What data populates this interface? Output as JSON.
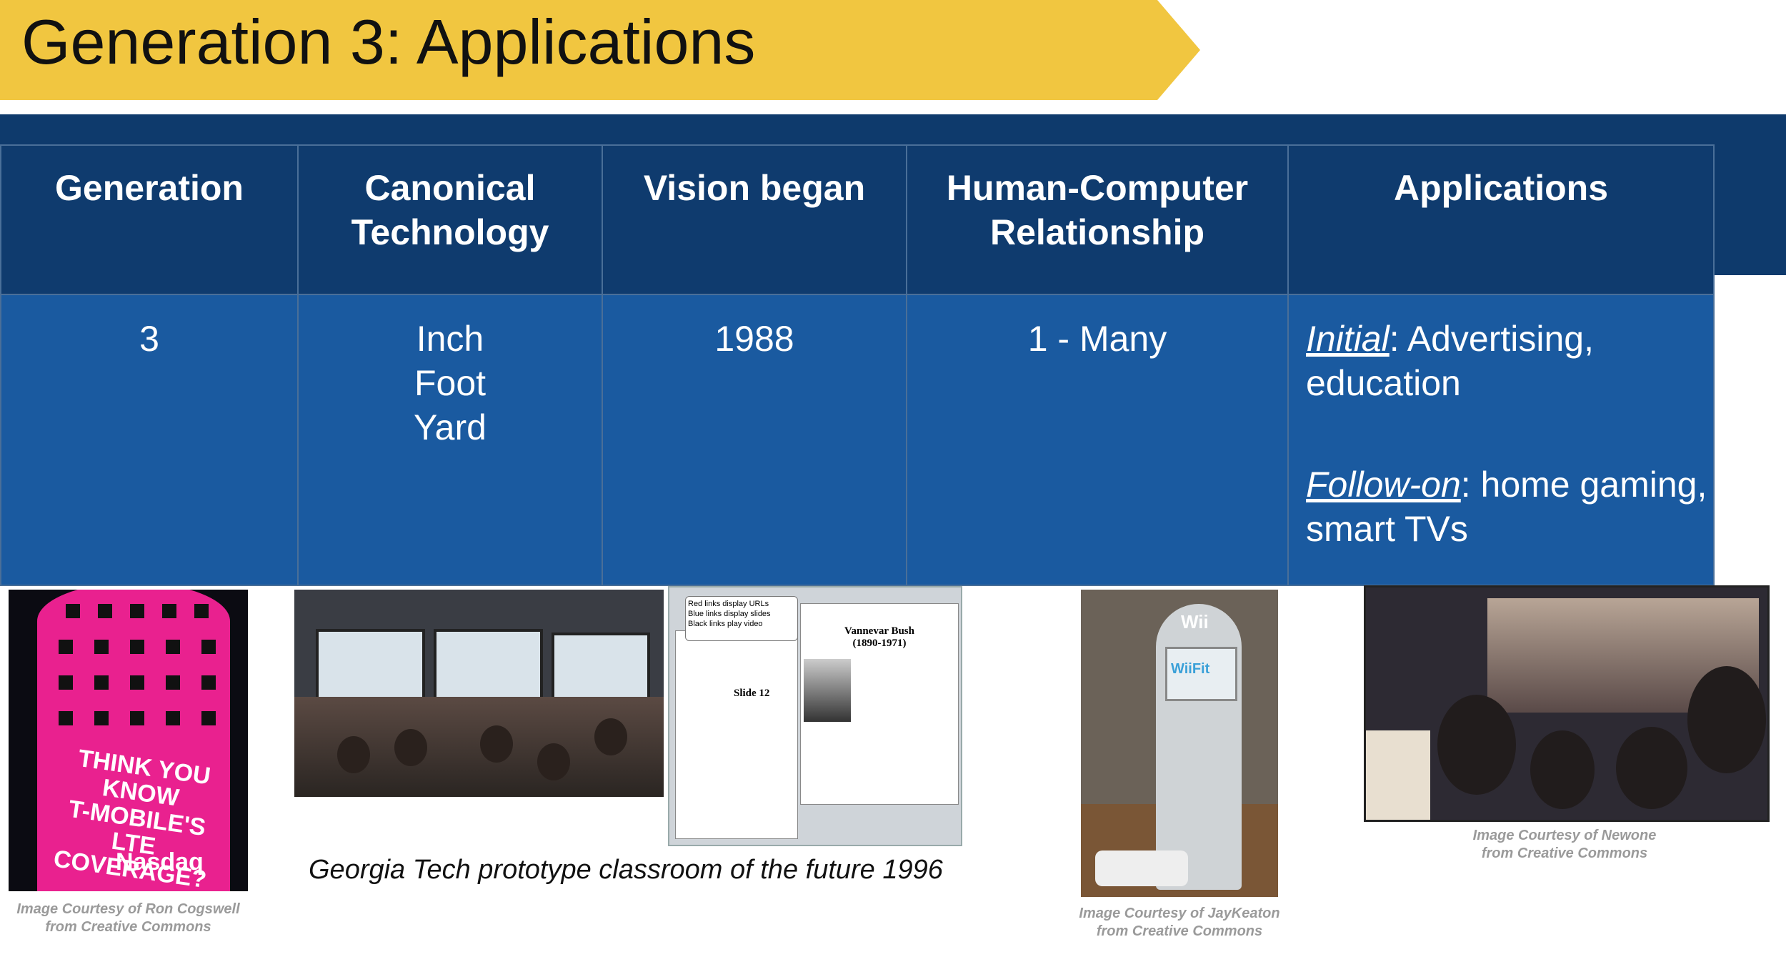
{
  "title": "Generation 3: Applications",
  "table": {
    "headers": {
      "generation": "Generation",
      "canonical_technology": [
        "Canonical",
        "Technology"
      ],
      "vision_began": "Vision began",
      "relationship": [
        "Human-Computer",
        "Relationship"
      ],
      "applications": "Applications"
    },
    "row": {
      "generation": "3",
      "canonical_technology": [
        "Inch",
        "Foot",
        "Yard"
      ],
      "vision_began": "1988",
      "relationship": "1 - Many",
      "applications": {
        "initial_term": "Initial",
        "initial_text": ": Advertising,",
        "initial_text2": "education",
        "followon_term": "Follow-on",
        "followon_text": ": home gaming,",
        "followon_text2": "smart TVs"
      }
    }
  },
  "images": {
    "tmobile": {
      "slogan": [
        "THINK YOU KNOW",
        "T-MOBILE'S",
        "LTE COVERAGE?"
      ],
      "brand": "Nasdaq",
      "credit": [
        "Image Courtesy of Ron Cogswell",
        "from Creative Commons"
      ]
    },
    "classroom": {
      "caption": "Georgia Tech prototype classroom of the future 1996",
      "web_note": [
        "Red links display URLs",
        "Blue links display slides",
        "Black links play video"
      ],
      "bio_title": [
        "Vannevar Bush",
        "(1890-1971)"
      ],
      "slide_label": "Slide 12"
    },
    "wii": {
      "logo": "Wii",
      "sub": "WiiFit",
      "credit": [
        "Image Courtesy of JayKeaton",
        "from Creative Commons"
      ]
    },
    "tv": {
      "credit": [
        "Image Courtesy of Newone",
        "from Creative Commons"
      ]
    }
  }
}
